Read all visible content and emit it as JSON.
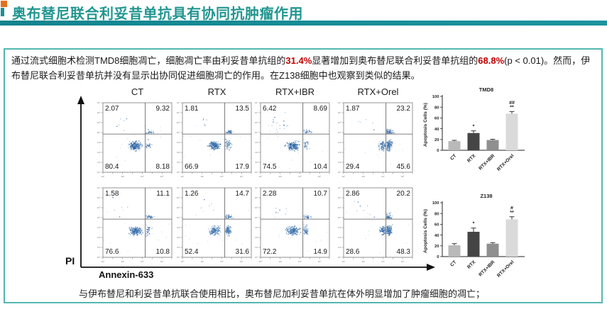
{
  "header": {
    "title": "奥布替尼联合利妥昔单抗具有协同抗肿瘤作用"
  },
  "intro": {
    "seg1": "通过流式细胞术检测TMD8细胞凋亡，细胞凋亡率由利妥昔单抗组的",
    "pct1": "31.4%",
    "seg2": "显著增加到奥布替尼联合利妥昔单抗组的",
    "pct2": "68.8%",
    "seg3": "(p < 0.01)。然而，伊布替尼联合利妥昔单抗并没有显示出协同促进细胞凋亡的作用。在Z138细胞中也观察到类似的结果。"
  },
  "figure": {
    "column_headers": [
      "CT",
      "RTX",
      "RTX+IBR",
      "RTX+Orel"
    ],
    "y_axis_label": "PI",
    "x_axis_label": "Annexin-633",
    "flow_panels": [
      {
        "row": 1,
        "col": 1,
        "group": "CT",
        "ul": "2.07",
        "ur": "9.32",
        "ll": "80.4",
        "lr": "8.18"
      },
      {
        "row": 1,
        "col": 2,
        "group": "RTX",
        "ul": "1.81",
        "ur": "13.5",
        "ll": "66.9",
        "lr": "17.9"
      },
      {
        "row": 1,
        "col": 3,
        "group": "RTX+IBR",
        "ul": "6.42",
        "ur": "8.69",
        "ll": "74.5",
        "lr": "10.4"
      },
      {
        "row": 1,
        "col": 4,
        "group": "RTX+Orel",
        "ul": "1.87",
        "ur": "23.2",
        "ll": "29.4",
        "lr": "45.6"
      },
      {
        "row": 2,
        "col": 1,
        "group": "CT",
        "ul": "1.58",
        "ur": "11.1",
        "ll": "76.6",
        "lr": "10.8"
      },
      {
        "row": 2,
        "col": 2,
        "group": "RTX",
        "ul": "1.26",
        "ur": "14.7",
        "ll": "52.4",
        "lr": "31.6"
      },
      {
        "row": 2,
        "col": 3,
        "group": "RTX+IBR",
        "ul": "2.28",
        "ur": "10.7",
        "ll": "72.2",
        "lr": "14.9"
      },
      {
        "row": 2,
        "col": 4,
        "group": "RTX+Orel",
        "ul": "2.86",
        "ur": "20.2",
        "ll": "28.6",
        "lr": "48.3"
      }
    ]
  },
  "chart_data": [
    {
      "type": "bar",
      "title": "TMD8",
      "ylabel": "Apoptosis Cells (%)",
      "ylim": [
        0,
        100
      ],
      "yticks": [
        0,
        20,
        40,
        60,
        80,
        100
      ],
      "categories": [
        "CT",
        "RTX",
        "RTX+IBR",
        "RTX+Orel"
      ],
      "values": [
        17,
        32,
        19,
        68
      ],
      "errors": [
        1.5,
        4,
        1.5,
        4
      ],
      "annotations": [
        [],
        [
          "*"
        ],
        [],
        [
          "##",
          "**"
        ]
      ],
      "bar_colors": [
        "#b9b9b9",
        "#454545",
        "#8f8f8f",
        "#dadada"
      ],
      "legend": "none",
      "grid": false
    },
    {
      "type": "bar",
      "title": "Z138",
      "ylabel": "Apoptosis Cells (%)",
      "ylim": [
        0,
        100
      ],
      "yticks": [
        0,
        20,
        40,
        60,
        80,
        100
      ],
      "categories": [
        "CT",
        "RTX",
        "RTX+IBR",
        "RTX+Orel"
      ],
      "values": [
        21,
        46,
        24,
        69
      ],
      "errors": [
        3,
        7,
        2,
        5
      ],
      "annotations": [
        [],
        [
          "*"
        ],
        [],
        [
          "#",
          "**"
        ]
      ],
      "bar_colors": [
        "#b9b9b9",
        "#454545",
        "#8f8f8f",
        "#dadada"
      ],
      "legend": "none",
      "grid": false
    }
  ],
  "conclusion": "与伊布替尼和利妥昔单抗联合使用相比，奥布替尼加利妥昔单抗在体外明显增加了肿瘤细胞的凋亡；",
  "colors": {
    "accent_teal": "#21968f",
    "underline_teal": "#18919b",
    "box_border": "#53b7b0",
    "highlight_red": "#c00000",
    "scatter_blue": "#4b82bb"
  }
}
